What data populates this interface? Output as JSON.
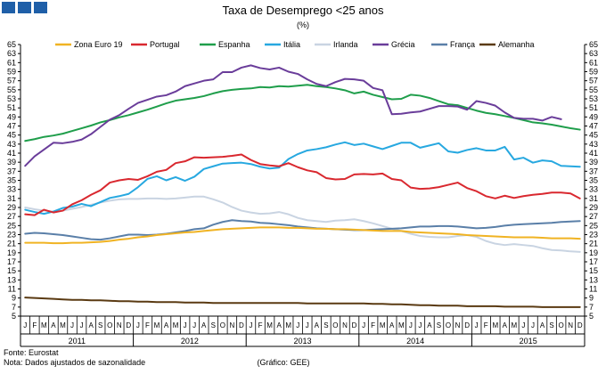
{
  "header": {
    "blocks_color": "#1f5fa8"
  },
  "chart_data": {
    "type": "line",
    "title": "Taxa de Desemprego <25 anos",
    "subtitle": "(%)",
    "ylim": [
      5,
      65
    ],
    "y_ticks": [
      5,
      7,
      9,
      11,
      13,
      15,
      17,
      19,
      21,
      23,
      25,
      27,
      29,
      31,
      33,
      35,
      37,
      39,
      41,
      43,
      45,
      47,
      49,
      51,
      53,
      55,
      57,
      59,
      61,
      63,
      65
    ],
    "grid": false,
    "legend_position": "top",
    "month_letters": [
      "J",
      "F",
      "M",
      "A",
      "M",
      "J",
      "J",
      "A",
      "S",
      "O",
      "N",
      "D"
    ],
    "years": [
      "2011",
      "2012",
      "2013",
      "2014",
      "2015"
    ],
    "series": [
      {
        "name": "Zona Euro 19",
        "color": "#f0b323",
        "values": [
          21.2,
          21.2,
          21.2,
          21.1,
          21.1,
          21.2,
          21.2,
          21.3,
          21.4,
          21.6,
          21.9,
          22.1,
          22.4,
          22.6,
          22.9,
          23.1,
          23.3,
          23.5,
          23.6,
          23.8,
          24.0,
          24.2,
          24.3,
          24.4,
          24.5,
          24.6,
          24.6,
          24.6,
          24.5,
          24.5,
          24.4,
          24.3,
          24.3,
          24.2,
          24.2,
          24.1,
          24.0,
          23.9,
          23.8,
          23.8,
          23.8,
          23.6,
          23.5,
          23.4,
          23.3,
          23.2,
          23.1,
          22.9,
          22.8,
          22.7,
          22.6,
          22.5,
          22.4,
          22.4,
          22.4,
          22.3,
          22.2,
          22.2,
          22.2,
          22.1
        ]
      },
      {
        "name": "Portugal",
        "color": "#d9282f",
        "values": [
          27.5,
          27.3,
          28.5,
          27.9,
          28.3,
          29.7,
          30.6,
          31.8,
          32.8,
          34.5,
          35.0,
          35.3,
          35.1,
          35.9,
          36.9,
          37.3,
          38.8,
          39.2,
          40.1,
          40.0,
          40.1,
          40.2,
          40.4,
          40.7,
          39.5,
          38.6,
          38.3,
          38.1,
          38.8,
          37.9,
          37.2,
          36.8,
          35.5,
          35.2,
          35.3,
          36.3,
          36.4,
          36.3,
          36.5,
          35.3,
          35.0,
          33.4,
          33.1,
          33.2,
          33.5,
          34.0,
          34.5,
          33.3,
          32.6,
          31.5,
          31.0,
          31.6,
          31.1,
          31.5,
          31.8,
          32.0,
          32.3,
          32.3,
          32.1,
          31.0
        ]
      },
      {
        "name": "Espanha",
        "color": "#1f9e4b",
        "values": [
          43.7,
          44.1,
          44.6,
          44.9,
          45.3,
          45.9,
          46.5,
          47.1,
          47.8,
          48.3,
          48.9,
          49.4,
          50.0,
          50.6,
          51.3,
          52.0,
          52.6,
          52.9,
          53.2,
          53.6,
          54.2,
          54.7,
          55.0,
          55.2,
          55.3,
          55.6,
          55.5,
          55.8,
          55.7,
          55.9,
          56.1,
          55.8,
          55.6,
          55.3,
          54.9,
          54.2,
          54.6,
          53.9,
          53.4,
          52.9,
          53.0,
          53.9,
          53.7,
          53.2,
          52.5,
          51.8,
          51.6,
          51.0,
          50.4,
          49.9,
          49.6,
          49.2,
          48.8,
          48.3,
          47.8,
          47.6,
          47.3,
          46.9,
          46.5,
          46.2
        ]
      },
      {
        "name": "Itália",
        "color": "#27a8e0",
        "values": [
          28.5,
          28.0,
          27.6,
          28.1,
          28.9,
          29.2,
          29.8,
          29.3,
          30.2,
          31.1,
          31.5,
          32.0,
          33.5,
          35.3,
          35.9,
          35.0,
          35.7,
          34.9,
          35.8,
          37.5,
          38.1,
          38.7,
          38.8,
          38.9,
          38.6,
          38.0,
          37.6,
          37.8,
          39.7,
          40.8,
          41.6,
          41.9,
          42.3,
          42.9,
          43.4,
          42.8,
          43.1,
          42.5,
          41.9,
          42.6,
          43.3,
          43.3,
          42.2,
          42.7,
          43.2,
          41.4,
          41.1,
          41.7,
          42.1,
          41.6,
          41.6,
          42.4,
          39.6,
          40.0,
          38.9,
          39.4,
          39.2,
          38.2,
          38.1,
          38.0
        ]
      },
      {
        "name": "Irlanda",
        "color": "#c9d4e2",
        "values": [
          29.0,
          28.6,
          28.3,
          28.1,
          28.3,
          28.7,
          29.1,
          29.6,
          30.1,
          30.5,
          30.8,
          30.9,
          30.9,
          31.0,
          31.0,
          30.9,
          31.0,
          31.2,
          31.4,
          31.4,
          30.8,
          30.1,
          29.1,
          28.3,
          27.9,
          27.6,
          27.7,
          28.0,
          27.5,
          26.7,
          26.2,
          26.0,
          25.8,
          26.1,
          26.2,
          26.4,
          26.0,
          25.5,
          24.9,
          24.3,
          23.8,
          23.2,
          22.7,
          22.5,
          22.4,
          22.4,
          22.7,
          22.9,
          22.5,
          21.6,
          21.0,
          20.7,
          20.9,
          20.7,
          20.5,
          20.0,
          19.6,
          19.5,
          19.3,
          19.2
        ]
      },
      {
        "name": "Grécia",
        "color": "#6a3d9a",
        "values": [
          38.2,
          40.3,
          41.8,
          43.3,
          43.2,
          43.5,
          44.0,
          45.2,
          46.8,
          48.4,
          49.4,
          50.8,
          52.1,
          52.8,
          53.5,
          53.8,
          54.6,
          55.8,
          56.4,
          57.0,
          57.3,
          58.9,
          58.9,
          59.9,
          60.4,
          59.8,
          59.5,
          59.9,
          59.0,
          58.5,
          57.3,
          56.3,
          55.8,
          56.7,
          57.4,
          57.3,
          57.0,
          55.4,
          54.9,
          49.6,
          49.7,
          50.0,
          50.2,
          50.8,
          51.4,
          51.4,
          51.3,
          50.6,
          52.5,
          52.1,
          51.5,
          50.0,
          48.8,
          48.6,
          48.6,
          48.2,
          49.0,
          48.5
        ]
      },
      {
        "name": "França",
        "color": "#5a7fa8",
        "values": [
          23.2,
          23.4,
          23.3,
          23.1,
          22.9,
          22.6,
          22.3,
          22.0,
          21.9,
          22.2,
          22.6,
          23.0,
          23.0,
          22.9,
          23.0,
          23.2,
          23.5,
          23.8,
          24.2,
          24.4,
          25.2,
          25.8,
          26.2,
          26.0,
          25.9,
          25.6,
          25.5,
          25.3,
          25.1,
          24.8,
          24.6,
          24.4,
          24.3,
          24.2,
          24.1,
          24.0,
          24.0,
          24.1,
          24.2,
          24.3,
          24.4,
          24.6,
          24.8,
          24.8,
          24.9,
          24.9,
          24.8,
          24.6,
          24.4,
          24.5,
          24.7,
          25.0,
          25.2,
          25.3,
          25.4,
          25.5,
          25.6,
          25.8,
          25.9,
          26.0
        ]
      },
      {
        "name": "Alemanha",
        "color": "#5a3a12",
        "values": [
          9.1,
          9.0,
          8.9,
          8.8,
          8.7,
          8.6,
          8.6,
          8.5,
          8.5,
          8.4,
          8.3,
          8.3,
          8.2,
          8.2,
          8.1,
          8.1,
          8.1,
          8.0,
          8.0,
          8.0,
          7.9,
          7.9,
          7.9,
          7.9,
          7.9,
          7.9,
          7.9,
          7.9,
          7.9,
          7.9,
          7.8,
          7.8,
          7.8,
          7.8,
          7.8,
          7.8,
          7.8,
          7.7,
          7.7,
          7.6,
          7.6,
          7.5,
          7.4,
          7.4,
          7.3,
          7.3,
          7.3,
          7.2,
          7.2,
          7.2,
          7.2,
          7.1,
          7.1,
          7.1,
          7.1,
          7.0,
          7.0,
          7.0,
          7.0,
          7.0
        ]
      }
    ]
  },
  "footer": {
    "source": "Fonte: Eurostat",
    "note": "Nota: Dados ajustados de sazonalidade",
    "credit": "(Gráfico: GEE)"
  }
}
